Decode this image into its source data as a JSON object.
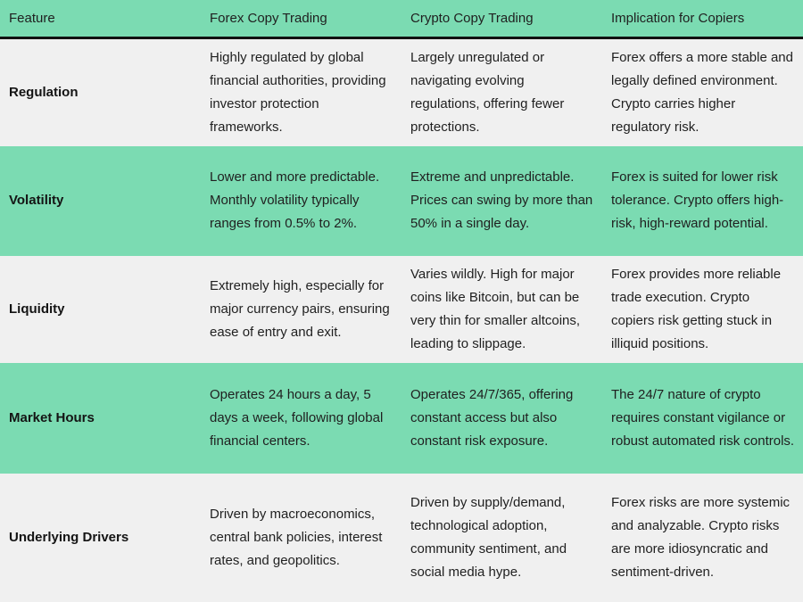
{
  "colors": {
    "header_bg": "#7bdbb2",
    "highlight_row_bg": "#7bdbb2",
    "default_row_bg": "#f0f0f0",
    "header_border": "#111111",
    "text": "#1f1f1f"
  },
  "table": {
    "columns": [
      "Feature",
      "Forex Copy Trading",
      "Crypto Copy Trading",
      "Implication for Copiers"
    ],
    "rows": [
      {
        "feature": "Regulation",
        "forex": "Highly regulated by global financial authorities, providing investor protection frameworks.",
        "crypto": "Largely unregulated or navigating evolving regulations, offering fewer protections.",
        "implication": "Forex offers a more stable and legally defined environment. Crypto carries higher regulatory risk."
      },
      {
        "feature": "Volatility",
        "forex": "Lower and more predictable. Monthly volatility typically ranges from 0.5% to 2%.",
        "crypto": "Extreme and unpredictable. Prices can swing by more than 50% in a single day.",
        "implication": "Forex is suited for lower risk tolerance. Crypto offers high-risk, high-reward potential."
      },
      {
        "feature": "Liquidity",
        "forex": "Extremely high, especially for major currency pairs, ensuring ease of entry and exit.",
        "crypto": "Varies wildly. High for major coins like Bitcoin, but can be very thin for smaller altcoins, leading to slippage.",
        "implication": "Forex provides more reliable trade execution. Crypto copiers risk getting stuck in illiquid positions."
      },
      {
        "feature": "Market Hours",
        "forex": "Operates 24 hours a day, 5 days a week, following global financial centers.",
        "crypto": "Operates 24/7/365, offering constant access but also constant risk exposure.",
        "implication": "The 24/7 nature of crypto requires constant vigilance or robust automated risk controls."
      },
      {
        "feature": "Underlying Drivers",
        "forex": "Driven by macroeconomics, central bank policies, interest rates, and geopolitics.",
        "crypto": "Driven by supply/demand, technological adoption, community sentiment, and social media hype.",
        "implication": "Forex risks are more systemic and analyzable. Crypto risks are more idiosyncratic and sentiment-driven."
      }
    ]
  }
}
